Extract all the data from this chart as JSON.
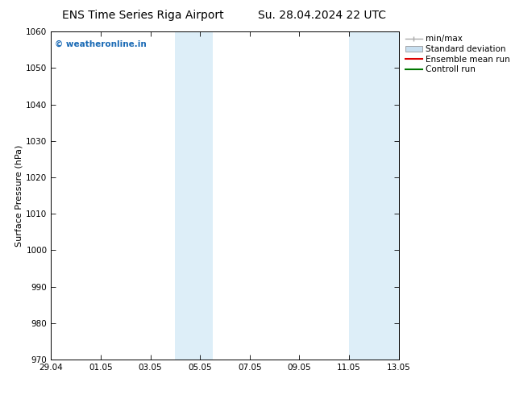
{
  "title_left": "ENS Time Series Riga Airport",
  "title_right": "Su. 28.04.2024 22 UTC",
  "ylabel": "Surface Pressure (hPa)",
  "ylim": [
    970,
    1060
  ],
  "yticks": [
    970,
    980,
    990,
    1000,
    1010,
    1020,
    1030,
    1040,
    1050,
    1060
  ],
  "xtick_labels": [
    "29.04",
    "01.05",
    "03.05",
    "05.05",
    "07.05",
    "09.05",
    "11.05",
    "13.05"
  ],
  "xtick_positions": [
    0,
    2,
    4,
    6,
    8,
    10,
    12,
    14
  ],
  "xlim": [
    0,
    14
  ],
  "shaded_bands": [
    {
      "x_start": 5.0,
      "x_end": 6.5,
      "color": "#ddeef8"
    },
    {
      "x_start": 12.0,
      "x_end": 14.0,
      "color": "#ddeef8"
    }
  ],
  "watermark_text": "© weatheronline.in",
  "watermark_color": "#1a6ab5",
  "legend_items": [
    {
      "label": "min/max",
      "color": "#aaaaaa",
      "style": "line_caps"
    },
    {
      "label": "Standard deviation",
      "color": "#c8dff0",
      "style": "rect"
    },
    {
      "label": "Ensemble mean run",
      "color": "#dd0000",
      "style": "line"
    },
    {
      "label": "Controll run",
      "color": "#007700",
      "style": "line"
    }
  ],
  "bg_color": "#ffffff",
  "title_fontsize": 10,
  "axis_label_fontsize": 8,
  "tick_fontsize": 7.5,
  "legend_fontsize": 7.5
}
